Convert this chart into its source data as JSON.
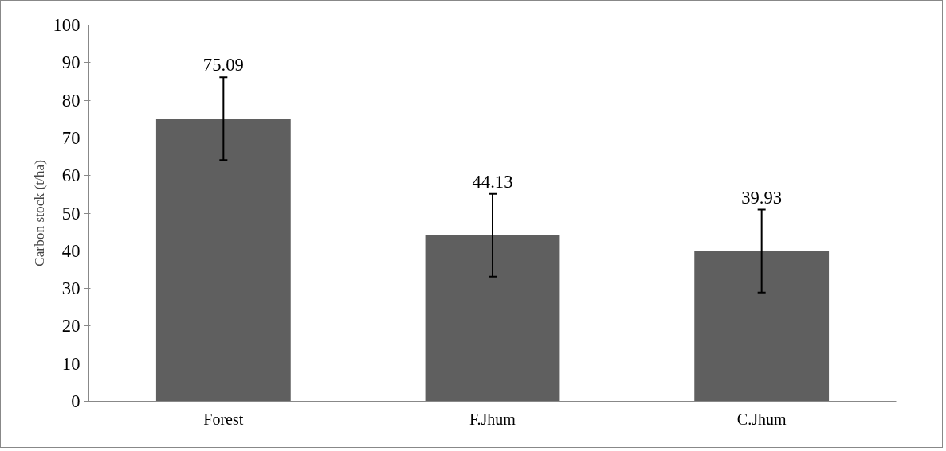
{
  "chart_data": {
    "type": "bar",
    "ylabel": "Carbon stock (t/ha)",
    "categories": [
      "Forest",
      "F.Jhum",
      "C.Jhum"
    ],
    "values": [
      75.09,
      44.13,
      39.93
    ],
    "errors": [
      11,
      11,
      11
    ],
    "color": "#5f5f5f",
    "data_labels": true,
    "ylim": [
      0,
      100
    ],
    "yticks": [
      0,
      10,
      20,
      30,
      40,
      50,
      60,
      70,
      80,
      90,
      100
    ],
    "grid": false
  }
}
